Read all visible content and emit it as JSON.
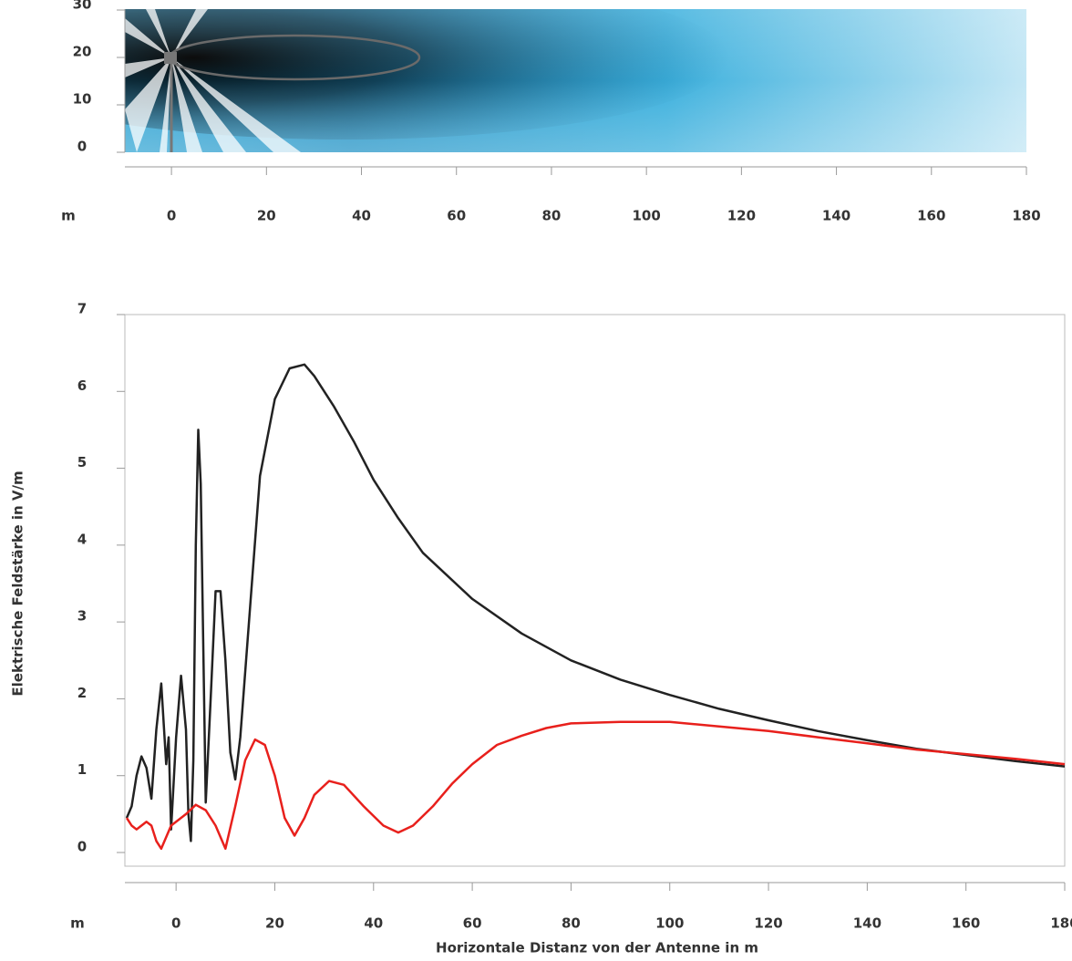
{
  "chart_data": [
    {
      "type": "field",
      "x_unit": "m",
      "xlim": [
        -10,
        180
      ],
      "xticks": [
        0,
        20,
        40,
        60,
        80,
        100,
        120,
        140,
        160,
        180
      ],
      "ylim": [
        0,
        30
      ],
      "yticks": [
        0,
        10,
        20,
        30
      ]
    },
    {
      "type": "line",
      "x_unit": "m",
      "ylabel": "Elektrische Feldstärke in V/m",
      "xlabel": "Horizontale Distanz von der Antenne in m",
      "xlim": [
        -10,
        180
      ],
      "xticks": [
        0,
        20,
        40,
        60,
        80,
        100,
        120,
        140,
        160,
        180
      ],
      "ylim": [
        0,
        7
      ],
      "yticks": [
        0,
        1,
        2,
        3,
        4,
        5,
        6,
        7
      ],
      "series": [
        {
          "color": "#222222",
          "x": [
            -10,
            -9,
            -8,
            -7,
            -6,
            -5,
            -4,
            -3,
            -2,
            -1.5,
            -1,
            0,
            1,
            2,
            2.5,
            3,
            3.5,
            4,
            4.5,
            5,
            6,
            7,
            8,
            9,
            10,
            11,
            12,
            13,
            15,
            17,
            20,
            23,
            26,
            28,
            32,
            36,
            40,
            45,
            50,
            60,
            70,
            80,
            90,
            100,
            110,
            120,
            130,
            140,
            150,
            160,
            170,
            180
          ],
          "values": [
            0.45,
            0.6,
            1.0,
            1.25,
            1.1,
            0.7,
            1.6,
            2.2,
            1.15,
            1.5,
            0.3,
            1.5,
            2.3,
            1.6,
            0.5,
            0.15,
            1.2,
            4.0,
            5.5,
            4.8,
            0.65,
            2.0,
            3.4,
            3.4,
            2.5,
            1.3,
            0.95,
            1.5,
            3.2,
            4.9,
            5.9,
            6.3,
            6.35,
            6.2,
            5.8,
            5.35,
            4.85,
            4.35,
            3.9,
            3.3,
            2.85,
            2.5,
            2.25,
            2.05,
            1.87,
            1.72,
            1.58,
            1.46,
            1.35,
            1.27,
            1.19,
            1.12
          ]
        },
        {
          "color": "#e8201c",
          "x": [
            -10,
            -9,
            -8,
            -7,
            -6,
            -5,
            -4,
            -3,
            -2,
            -1,
            0,
            2,
            4,
            6,
            8,
            10,
            12,
            14,
            16,
            18,
            20,
            22,
            24,
            26,
            28,
            31,
            34,
            38,
            42,
            45,
            48,
            52,
            56,
            60,
            65,
            70,
            75,
            80,
            90,
            100,
            110,
            120,
            130,
            140,
            150,
            160,
            170,
            180
          ],
          "values": [
            0.45,
            0.35,
            0.3,
            0.35,
            0.4,
            0.35,
            0.15,
            0.05,
            0.2,
            0.35,
            0.4,
            0.5,
            0.62,
            0.55,
            0.35,
            0.05,
            0.6,
            1.2,
            1.47,
            1.4,
            1.0,
            0.45,
            0.22,
            0.45,
            0.75,
            0.93,
            0.88,
            0.6,
            0.35,
            0.26,
            0.35,
            0.6,
            0.9,
            1.15,
            1.4,
            1.52,
            1.62,
            1.68,
            1.7,
            1.7,
            1.64,
            1.58,
            1.5,
            1.42,
            1.34,
            1.28,
            1.22,
            1.15
          ]
        }
      ]
    }
  ]
}
